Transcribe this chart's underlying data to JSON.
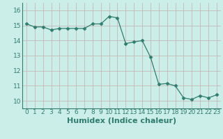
{
  "x": [
    0,
    1,
    2,
    3,
    4,
    5,
    6,
    7,
    8,
    9,
    10,
    11,
    12,
    13,
    14,
    15,
    16,
    17,
    18,
    19,
    20,
    21,
    22,
    23
  ],
  "y": [
    15.1,
    14.9,
    14.9,
    14.7,
    14.8,
    14.8,
    14.8,
    14.8,
    15.1,
    15.1,
    15.6,
    15.5,
    13.8,
    13.9,
    14.0,
    12.9,
    11.1,
    11.15,
    11.0,
    10.2,
    10.1,
    10.35,
    10.2,
    10.4
  ],
  "line_color": "#2e7d6e",
  "marker": "D",
  "marker_size": 2.5,
  "bg_color": "#cceee8",
  "grid_color_v": "#c8b8b8",
  "grid_color_h": "#c8b8b8",
  "xlabel": "Humidex (Indice chaleur)",
  "xlabel_fontsize": 8,
  "ylim": [
    9.5,
    16.5
  ],
  "xlim": [
    -0.5,
    23.5
  ],
  "yticks": [
    10,
    11,
    12,
    13,
    14,
    15,
    16
  ],
  "xticks": [
    0,
    1,
    2,
    3,
    4,
    5,
    6,
    7,
    8,
    9,
    10,
    11,
    12,
    13,
    14,
    15,
    16,
    17,
    18,
    19,
    20,
    21,
    22,
    23
  ],
  "tick_fontsize": 6.5,
  "tick_color": "#2e7d6e"
}
